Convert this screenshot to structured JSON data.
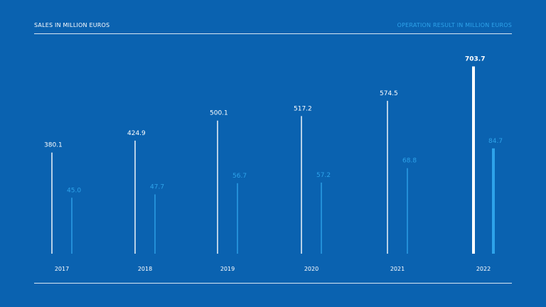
{
  "legend": {
    "sales_label": "SALES IN MILLION EUROS",
    "operation_label": "OPERATION RESULT IN MILLION EUROS"
  },
  "colors": {
    "background": "#0a62b0",
    "sales": "#ffffff",
    "operation": "#2ea3ea"
  },
  "chart_data": {
    "type": "bar",
    "categories": [
      "2017",
      "2018",
      "2019",
      "2020",
      "2021",
      "2022"
    ],
    "series": [
      {
        "name": "SALES IN MILLION EUROS",
        "values": [
          380.1,
          424.9,
          500.1,
          517.2,
          574.5,
          703.7
        ],
        "labels": [
          "380.1",
          "424.9",
          "500.1",
          "517.2",
          "574.5",
          "703.7"
        ]
      },
      {
        "name": "OPERATION RESULT IN MILLION EUROS",
        "values": [
          45.0,
          47.7,
          56.7,
          57.2,
          68.8,
          84.7
        ],
        "labels": [
          "45.0",
          "47.7",
          "56.7",
          "57.2",
          "68.8",
          "84.7"
        ]
      }
    ],
    "highlighted_category": "2022",
    "grid": false,
    "legend_placement": "top"
  }
}
